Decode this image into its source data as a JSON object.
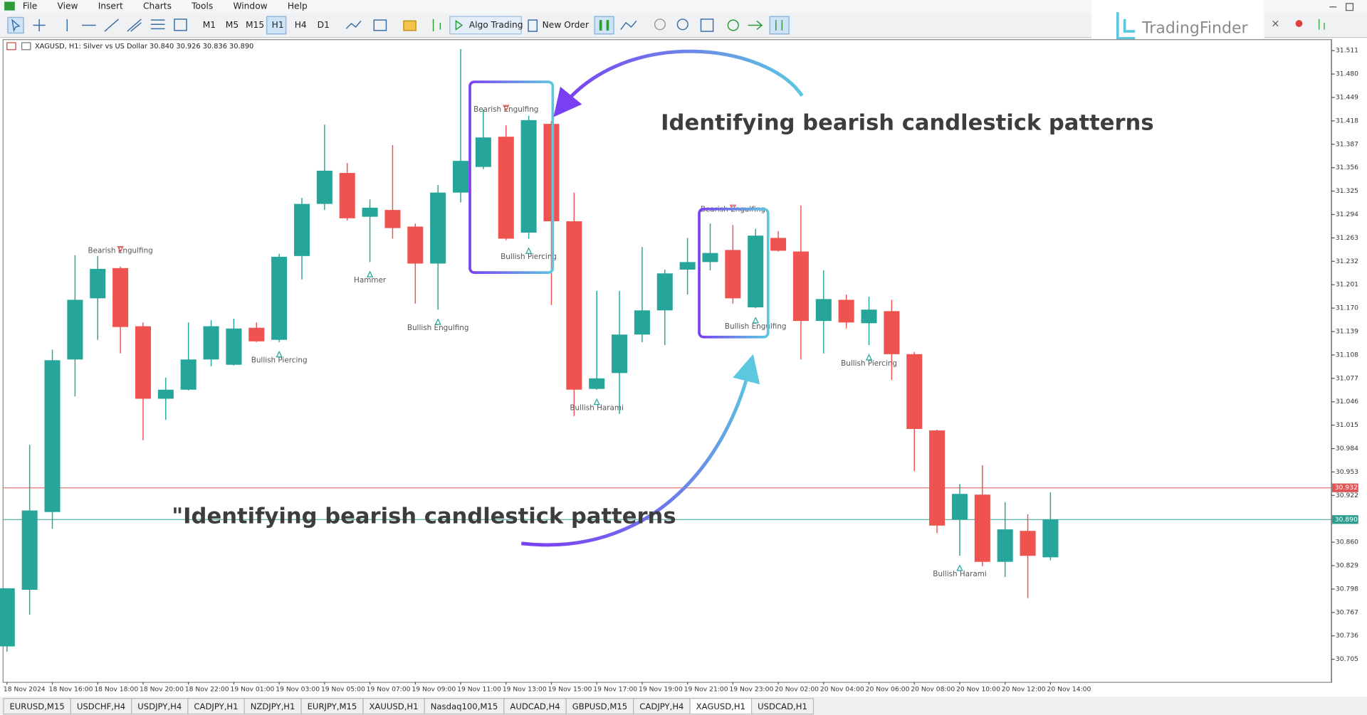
{
  "menu": [
    "File",
    "View",
    "Insert",
    "Charts",
    "Tools",
    "Window",
    "Help"
  ],
  "toolbar": {
    "timeframes": [
      "M1",
      "M5",
      "M15",
      "H1",
      "H4",
      "D1"
    ],
    "algo_trading": "Algo Trading",
    "new_order": "New Order"
  },
  "logo": "TradingFinder",
  "chart_data": {
    "type": "candlestick",
    "title": "XAGUSD, H1:  Silver vs US Dollar  30.840 30.926 30.836 30.890",
    "x": [
      "18 Nov 2024",
      null,
      "18 Nov 16:00",
      null,
      "18 Nov 18:00",
      null,
      "18 Nov 20:00",
      null,
      "18 Nov 22:00",
      null,
      "19 Nov 01:00",
      null,
      "19 Nov 03:00",
      null,
      "19 Nov 05:00",
      null,
      "19 Nov 07:00",
      null,
      "19 Nov 09:00",
      null,
      "19 Nov 11:00",
      null,
      "19 Nov 13:00",
      null,
      "19 Nov 15:00",
      null,
      "19 Nov 17:00",
      null,
      "19 Nov 19:00",
      null,
      "19 Nov 21:00",
      null,
      "19 Nov 23:00",
      null,
      "20 Nov 02:00",
      null,
      "20 Nov 04:00",
      null,
      "20 Nov 06:00",
      null,
      "20 Nov 08:00",
      null,
      "20 Nov 10:00",
      null,
      "20 Nov 12:00",
      null,
      "20 Nov 14:00"
    ],
    "open": [
      30.722,
      30.797,
      30.9,
      31.102,
      31.183,
      31.223,
      31.146,
      31.05,
      31.062,
      31.102,
      31.095,
      31.144,
      31.128,
      31.239,
      31.308,
      31.349,
      31.291,
      31.3,
      31.278,
      31.229,
      31.323,
      31.357,
      31.397,
      31.27,
      31.414,
      31.285,
      31.063,
      31.084,
      31.135,
      31.167,
      31.221,
      31.231,
      31.247,
      31.171,
      31.263,
      31.245,
      31.153,
      31.181,
      31.15,
      31.166,
      31.109,
      31.008,
      30.89,
      30.923,
      30.834,
      30.875,
      30.84
    ],
    "high": [
      30.799,
      30.989,
      31.115,
      31.24,
      31.239,
      31.225,
      31.151,
      31.078,
      31.151,
      31.154,
      31.156,
      31.151,
      31.242,
      31.316,
      31.413,
      31.362,
      31.314,
      31.386,
      31.282,
      31.333,
      31.513,
      31.433,
      31.412,
      31.425,
      31.418,
      31.323,
      31.193,
      31.193,
      31.251,
      31.221,
      31.263,
      31.282,
      31.28,
      31.275,
      31.272,
      31.306,
      31.22,
      31.188,
      31.185,
      31.181,
      31.112,
      31.009,
      30.937,
      30.962,
      30.913,
      30.897,
      30.926
    ],
    "low": [
      30.715,
      30.764,
      30.878,
      31.053,
      31.128,
      31.11,
      30.995,
      31.022,
      31.061,
      31.093,
      31.094,
      31.125,
      31.125,
      31.208,
      31.3,
      31.286,
      31.231,
      31.262,
      31.176,
      31.168,
      31.31,
      31.354,
      31.26,
      31.262,
      31.174,
      31.027,
      31.062,
      31.03,
      31.125,
      31.121,
      31.188,
      31.22,
      31.176,
      31.17,
      31.245,
      31.102,
      31.11,
      31.143,
      31.121,
      31.075,
      30.954,
      30.872,
      30.842,
      30.828,
      30.814,
      30.786,
      30.836
    ],
    "close": [
      30.799,
      30.902,
      31.101,
      31.181,
      31.222,
      31.145,
      31.05,
      31.062,
      31.102,
      31.146,
      31.143,
      31.126,
      31.238,
      31.308,
      31.352,
      31.289,
      31.303,
      31.276,
      31.229,
      31.323,
      31.365,
      31.396,
      31.262,
      31.419,
      31.285,
      31.062,
      31.077,
      31.135,
      31.167,
      31.216,
      31.231,
      31.243,
      31.183,
      31.266,
      31.246,
      31.153,
      31.182,
      31.151,
      31.168,
      31.109,
      31.01,
      30.882,
      30.924,
      30.834,
      30.877,
      30.842,
      30.89
    ],
    "up_color": "#26a69a",
    "down_color": "#ef5350",
    "patterns": [
      null,
      null,
      null,
      null,
      null,
      "Bearish Engulfing",
      null,
      null,
      null,
      null,
      null,
      null,
      "Bullish Piercing",
      null,
      null,
      null,
      "Hammer",
      null,
      null,
      "Bullish Engulfing",
      null,
      null,
      "Bearish Engulfing",
      "Bullish Piercing",
      null,
      null,
      "Bullish Harami",
      null,
      null,
      null,
      null,
      null,
      "Bearish Engulfing",
      "Bullish Engulfing",
      null,
      null,
      null,
      null,
      "Bullish Piercing",
      null,
      null,
      null,
      "Bullish Harami",
      null,
      null,
      null,
      null
    ],
    "ylim": [
      30.675,
      31.525
    ],
    "yticks": [
      31.511,
      {
        "value": 31.48,
        "label": "31.480"
      },
      31.449,
      31.418,
      31.387,
      31.356,
      31.325,
      31.294,
      31.263,
      31.232,
      31.201,
      {
        "value": 31.17,
        "label": "31.170"
      },
      31.139,
      31.108,
      31.077,
      31.046,
      31.015,
      30.984,
      30.953,
      30.922,
      {
        "value": 30.86,
        "label": "30.860"
      },
      30.829,
      30.798,
      30.767,
      30.736,
      30.705
    ],
    "price_lines": [
      {
        "value": 30.932,
        "label": "30.932",
        "color": "#e05555"
      },
      {
        "value": 30.89,
        "label": "30.890",
        "color": "#2a9d8f"
      }
    ],
    "annotations": [
      "Identifying bearish candlestick patterns",
      "\"Identifying bearish candlestick patterns"
    ]
  },
  "tabs": [
    {
      "label": "EURUSD,M15"
    },
    {
      "label": "USDCHF,H4"
    },
    {
      "label": "USDJPY,H4"
    },
    {
      "label": "CADJPY,H1"
    },
    {
      "label": "NZDJPY,H1"
    },
    {
      "label": "EURJPY,M15"
    },
    {
      "label": "XAUUSD,H1"
    },
    {
      "label": "Nasdaq100,M15"
    },
    {
      "label": "AUDCAD,H4"
    },
    {
      "label": "GBPUSD,M15"
    },
    {
      "label": "CADJPY,H4"
    },
    {
      "label": "XAGUSD,H1",
      "active": true
    },
    {
      "label": "USDCAD,H1"
    }
  ]
}
